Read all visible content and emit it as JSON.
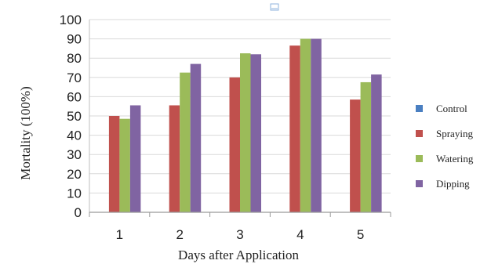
{
  "chart_data": {
    "type": "bar",
    "title": "",
    "xlabel": "Days after Application",
    "ylabel": "Mortality (100%)",
    "categories": [
      "1",
      "2",
      "3",
      "4",
      "5"
    ],
    "ylim": [
      0,
      100
    ],
    "yticks": [
      0,
      10,
      20,
      30,
      40,
      50,
      60,
      70,
      80,
      90,
      100
    ],
    "grid": true,
    "legend_position": "right",
    "series": [
      {
        "name": "Control",
        "color": "#4a7fc1",
        "values": [
          0,
          0,
          0,
          0,
          0
        ]
      },
      {
        "name": "Spraying",
        "color": "#c0504d",
        "values": [
          50,
          55.5,
          70,
          86.5,
          58.5
        ]
      },
      {
        "name": "Watering",
        "color": "#9bbb59",
        "values": [
          48.5,
          72.5,
          82.5,
          90,
          67.5
        ]
      },
      {
        "name": "Dipping",
        "color": "#8064a2",
        "values": [
          55.5,
          77,
          82,
          90,
          71.5
        ]
      }
    ]
  }
}
